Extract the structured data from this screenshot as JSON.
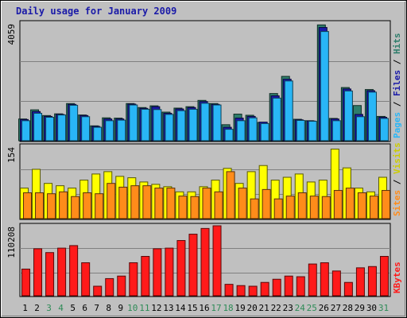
{
  "chart_data": [
    {
      "type": "bar",
      "title": "Daily usage for January 2009",
      "categories": [
        "1",
        "2",
        "3",
        "4",
        "5",
        "6",
        "7",
        "8",
        "9",
        "10",
        "11",
        "12",
        "13",
        "14",
        "15",
        "16",
        "17",
        "18",
        "19",
        "20",
        "21",
        "22",
        "23",
        "24",
        "25",
        "26",
        "27",
        "28",
        "29",
        "30",
        "31"
      ],
      "weekend_days": [
        "3",
        "4",
        "10",
        "11",
        "17",
        "18",
        "24",
        "25",
        "31"
      ],
      "ylim": [
        0,
        4059
      ],
      "y_tick_label": "4059",
      "right_label": {
        "parts": [
          "Pages",
          "Files",
          "Hits"
        ],
        "separator": " / "
      },
      "series": [
        {
          "name": "Hits",
          "color": "#2e7d6b",
          "values": [
            760,
            1080,
            880,
            940,
            1300,
            900,
            520,
            800,
            790,
            1300,
            1160,
            1220,
            1000,
            1140,
            1190,
            1410,
            1300,
            560,
            930,
            890,
            640,
            1650,
            2250,
            750,
            700,
            4050,
            780,
            1860,
            1230,
            1790,
            850
          ]
        },
        {
          "name": "Files",
          "color": "#1a1aa8",
          "values": [
            740,
            1020,
            850,
            920,
            1270,
            880,
            500,
            760,
            760,
            1280,
            1130,
            1190,
            960,
            1110,
            1160,
            1370,
            1270,
            470,
            790,
            850,
            650,
            1570,
            2150,
            730,
            690,
            3960,
            760,
            1810,
            920,
            1750,
            820
          ]
        },
        {
          "name": "Pages",
          "color": "#29b6f6",
          "values": [
            700,
            960,
            820,
            900,
            1240,
            840,
            470,
            700,
            720,
            1250,
            1100,
            1090,
            920,
            1050,
            1100,
            1310,
            1250,
            400,
            700,
            800,
            600,
            1490,
            2090,
            710,
            680,
            3820,
            700,
            1740,
            840,
            1700,
            780
          ]
        }
      ]
    },
    {
      "type": "bar",
      "categories": [
        "1",
        "2",
        "3",
        "4",
        "5",
        "6",
        "7",
        "8",
        "9",
        "10",
        "11",
        "12",
        "13",
        "14",
        "15",
        "16",
        "17",
        "18",
        "19",
        "20",
        "21",
        "22",
        "23",
        "24",
        "25",
        "26",
        "27",
        "28",
        "29",
        "30",
        "31"
      ],
      "ylim": [
        0,
        154
      ],
      "y_tick_label": "154",
      "right_label": {
        "parts": [
          "Sites",
          "Visits"
        ],
        "separator": " / "
      },
      "series": [
        {
          "name": "Visits",
          "color": "#ffff00",
          "values": [
            65,
            105,
            75,
            70,
            65,
            82,
            95,
            100,
            90,
            87,
            78,
            73,
            68,
            57,
            57,
            68,
            82,
            107,
            75,
            100,
            113,
            82,
            88,
            95,
            78,
            82,
            148,
            108,
            65,
            57,
            88
          ]
        },
        {
          "name": "Sites",
          "color": "#ff8c1a",
          "values": [
            55,
            55,
            53,
            57,
            47,
            55,
            53,
            75,
            67,
            70,
            70,
            65,
            65,
            48,
            47,
            65,
            57,
            100,
            65,
            42,
            62,
            42,
            48,
            55,
            48,
            47,
            60,
            65,
            55,
            48,
            60
          ]
        }
      ]
    },
    {
      "type": "bar",
      "categories": [
        "1",
        "2",
        "3",
        "4",
        "5",
        "6",
        "7",
        "8",
        "9",
        "10",
        "11",
        "12",
        "13",
        "14",
        "15",
        "16",
        "17",
        "18",
        "19",
        "20",
        "21",
        "22",
        "23",
        "24",
        "25",
        "26",
        "27",
        "28",
        "29",
        "30",
        "31"
      ],
      "ylim": [
        0,
        110208
      ],
      "y_tick_label": "110208",
      "right_label": {
        "parts": [
          "KBytes"
        ],
        "separator": ""
      },
      "series": [
        {
          "name": "KBytes",
          "color": "#ff1a1a",
          "values": [
            42000,
            74000,
            68000,
            75000,
            79000,
            52000,
            15000,
            27000,
            31000,
            52000,
            62000,
            74000,
            75000,
            87000,
            97000,
            106000,
            110208,
            18000,
            16000,
            15000,
            21000,
            26000,
            31000,
            30000,
            50000,
            52000,
            39000,
            21000,
            44000,
            46000,
            62000
          ]
        }
      ]
    }
  ]
}
